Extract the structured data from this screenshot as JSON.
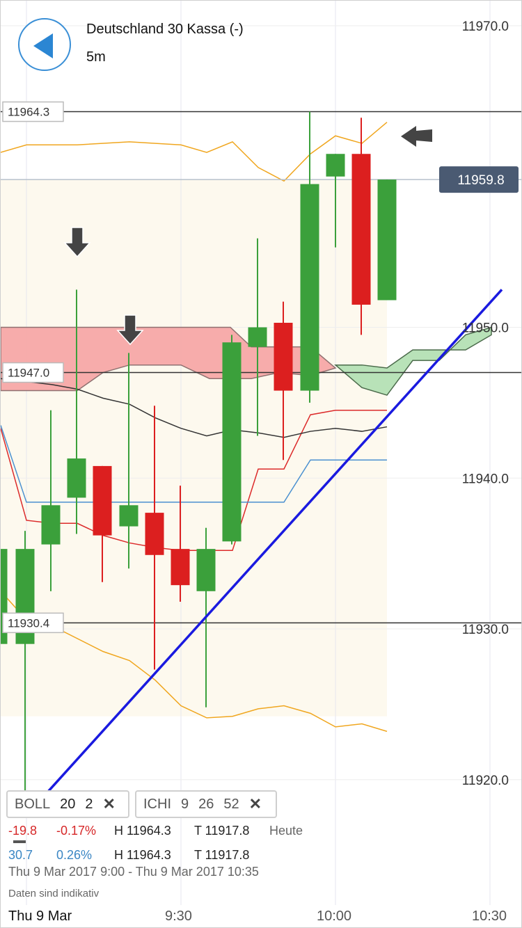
{
  "header": {
    "instrument": "Deutschland 30 Kassa (-)",
    "interval": "5m"
  },
  "price_labels": {
    "level_high": "11964.3",
    "level_mid": "11947.0",
    "level_low": "11930.4",
    "current": "11959.8"
  },
  "y_ticks": [
    "11970.0",
    "11950.0",
    "11940.0",
    "11930.0",
    "11920.0"
  ],
  "x_ticks": [
    "Thu 9 Mar",
    "9:30",
    "10:00",
    "10:30"
  ],
  "indicators": {
    "boll": {
      "name": "BOLL",
      "p1": "20",
      "p2": "2",
      "close": "✕"
    },
    "ichi": {
      "name": "ICHI",
      "p1": "9",
      "p2": "26",
      "p3": "52",
      "close": "✕"
    }
  },
  "stats": {
    "row1": {
      "change": "-19.8",
      "pct": "-0.17%",
      "high": "H 11964.3",
      "low": "T 11917.8",
      "label": "Heute"
    },
    "row2": {
      "change": "30.7",
      "pct": "0.26%",
      "high": "H 11964.3",
      "low": "T 11917.8"
    },
    "range": "Thu 9 Mar 2017 9:00 - Thu 9 Mar 2017 10:35",
    "note": "Daten sind indikativ"
  },
  "colors": {
    "up": "#3ba03b",
    "down": "#dc1f1f",
    "bollinger": "#f0a61e",
    "tenkan": "#dc2a2a",
    "kijun": "#4a90d0",
    "chikou": "#333333",
    "cloud_bear": "#f7a8a8",
    "cloud_bull": "#b8e2b8",
    "trendline": "#1a1adf",
    "current_badge": "#4a5a72"
  },
  "chart_data": {
    "type": "candlestick",
    "title": "Deutschland 30 Kassa (-)",
    "interval": "5m",
    "ylim": [
      11916,
      11972
    ],
    "x_ticks": [
      "Thu 9 Mar",
      "9:30",
      "10:00",
      "10:30"
    ],
    "y_ticks": [
      11970.0,
      11950.0,
      11940.0,
      11930.0,
      11920.0
    ],
    "candles": [
      {
        "time": "9:00",
        "open": 11929.0,
        "high": 11935.3,
        "low": 11929.0,
        "close": 11935.3
      },
      {
        "time": "9:05",
        "open": 11929.0,
        "high": 11936.5,
        "low": 11917.8,
        "close": 11935.3
      },
      {
        "time": "9:10",
        "open": 11935.6,
        "high": 11944.5,
        "low": 11932.5,
        "close": 11938.2
      },
      {
        "time": "9:15",
        "open": 11938.7,
        "high": 11952.5,
        "low": 11936.3,
        "close": 11941.3
      },
      {
        "time": "9:20",
        "open": 11940.8,
        "high": 11940.8,
        "low": 11933.1,
        "close": 11936.2
      },
      {
        "time": "9:25",
        "open": 11936.8,
        "high": 11948.3,
        "low": 11934.0,
        "close": 11938.2
      },
      {
        "time": "9:30",
        "open": 11937.7,
        "high": 11944.8,
        "low": 11927.3,
        "close": 11934.9
      },
      {
        "time": "9:35",
        "open": 11935.3,
        "high": 11939.5,
        "low": 11931.8,
        "close": 11932.9
      },
      {
        "time": "9:40",
        "open": 11932.5,
        "high": 11936.7,
        "low": 11924.8,
        "close": 11935.3
      },
      {
        "time": "9:45",
        "open": 11935.8,
        "high": 11949.5,
        "low": 11935.6,
        "close": 11949.0
      },
      {
        "time": "9:50",
        "open": 11948.7,
        "high": 11955.9,
        "low": 11942.8,
        "close": 11950.0
      },
      {
        "time": "9:55",
        "open": 11950.3,
        "high": 11951.7,
        "low": 11941.2,
        "close": 11945.8
      },
      {
        "time": "10:00",
        "open": 11945.8,
        "high": 11964.3,
        "low": 11945.0,
        "close": 11959.5
      },
      {
        "time": "10:05",
        "open": 11960.0,
        "high": 11961.5,
        "low": 11955.3,
        "close": 11961.5
      },
      {
        "time": "10:10",
        "open": 11961.5,
        "high": 11963.9,
        "low": 11949.5,
        "close": 11951.5
      },
      {
        "time": "10:15",
        "open": 11951.8,
        "high": 11959.8,
        "low": 11951.8,
        "close": 11959.8
      }
    ],
    "horizontal_levels": [
      11964.3,
      11947.0,
      11930.4
    ],
    "current_price": 11959.8,
    "indicators": [
      "BOLL 20 2",
      "ICHI 9 26 52"
    ]
  }
}
